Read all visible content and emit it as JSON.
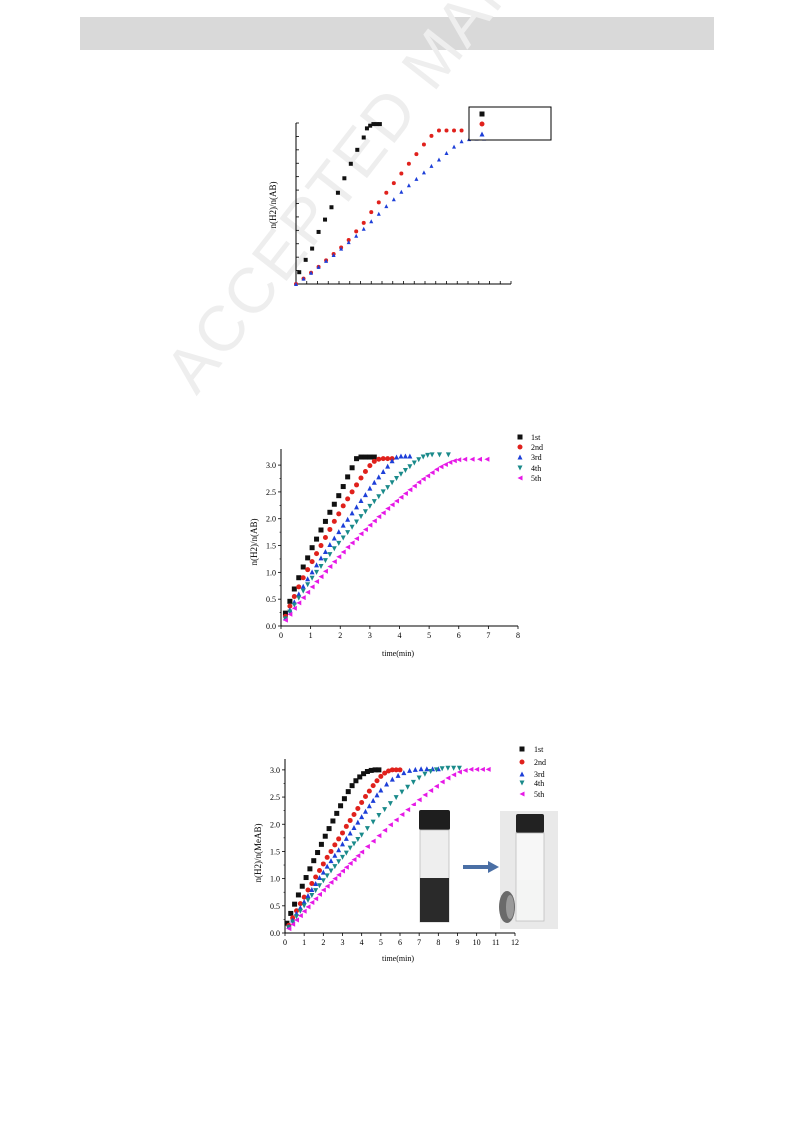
{
  "watermark": "ACCEPTED MANUSCRIPT",
  "colors": {
    "series1": "#111111",
    "series2": "#e0211c",
    "series3": "#1d3fd8",
    "series4": "#1a8a8a",
    "series5": "#e619e6",
    "arrow": "#4a6fa5"
  },
  "chart_data": [
    {
      "type": "scatter",
      "title": "",
      "xlabel": "",
      "ylabel": "n(H2)/n(AB)",
      "xlim": [
        0,
        10
      ],
      "ylim": [
        0,
        3
      ],
      "xticks": [],
      "yticks": [],
      "legend": {
        "position": "top-right",
        "entries": [
          "",
          "",
          ""
        ]
      },
      "series": [
        {
          "marker": "square",
          "color": "#111111",
          "x": [
            0.15,
            0.45,
            0.75,
            1.05,
            1.35,
            1.65,
            1.95,
            2.25,
            2.55,
            2.85,
            3.15,
            3.3,
            3.45,
            3.6,
            3.75,
            3.9
          ],
          "y": [
            0.22,
            0.45,
            0.66,
            0.97,
            1.2,
            1.43,
            1.7,
            1.97,
            2.24,
            2.5,
            2.73,
            2.9,
            2.95,
            2.98,
            2.98,
            2.98
          ]
        },
        {
          "marker": "circle",
          "color": "#e0211c",
          "x": [
            0,
            0.35,
            0.7,
            1.05,
            1.4,
            1.75,
            2.1,
            2.45,
            2.8,
            3.15,
            3.5,
            3.85,
            4.2,
            4.55,
            4.9,
            5.25,
            5.6,
            5.95,
            6.3,
            6.65,
            7.0,
            7.35,
            7.7
          ],
          "y": [
            0,
            0.1,
            0.21,
            0.32,
            0.44,
            0.56,
            0.68,
            0.82,
            0.98,
            1.14,
            1.34,
            1.52,
            1.7,
            1.88,
            2.06,
            2.24,
            2.42,
            2.6,
            2.76,
            2.86,
            2.86,
            2.86,
            2.86
          ]
        },
        {
          "marker": "triangle-up",
          "color": "#1d3fd8",
          "x": [
            0,
            0.35,
            0.7,
            1.05,
            1.4,
            1.75,
            2.1,
            2.45,
            2.8,
            3.15,
            3.5,
            3.85,
            4.2,
            4.55,
            4.9,
            5.25,
            5.6,
            5.95,
            6.3,
            6.65,
            7.0,
            7.35,
            7.7,
            8.05,
            8.4,
            8.75
          ],
          "y": [
            0,
            0.1,
            0.21,
            0.32,
            0.43,
            0.54,
            0.66,
            0.78,
            0.9,
            1.03,
            1.17,
            1.31,
            1.45,
            1.58,
            1.72,
            1.84,
            1.96,
            2.08,
            2.2,
            2.32,
            2.44,
            2.56,
            2.66,
            2.7,
            2.71,
            2.71
          ]
        }
      ]
    },
    {
      "type": "scatter",
      "title": "",
      "xlabel": "time(min)",
      "ylabel": "n(H2)/n(AB)",
      "xlim": [
        0,
        8
      ],
      "ylim": [
        0,
        3.3
      ],
      "xticks": [
        "0",
        "1",
        "2",
        "3",
        "4",
        "5",
        "6",
        "7",
        "8"
      ],
      "yticks": [
        "0.0",
        "0.5",
        "1.0",
        "1.5",
        "2.0",
        "2.5",
        "3.0"
      ],
      "legend": {
        "position": "top-right",
        "entries": [
          "1st",
          "2nd",
          "3rd",
          "4th",
          "5th"
        ]
      },
      "series": [
        {
          "name": "1st",
          "marker": "square",
          "color": "#111111",
          "x": [
            0.15,
            0.3,
            0.45,
            0.6,
            0.75,
            0.9,
            1.05,
            1.2,
            1.35,
            1.5,
            1.65,
            1.8,
            1.95,
            2.1,
            2.25,
            2.4,
            2.55,
            2.7,
            2.85,
            3.0,
            3.15
          ],
          "y": [
            0.24,
            0.46,
            0.69,
            0.9,
            1.1,
            1.27,
            1.46,
            1.62,
            1.79,
            1.95,
            2.12,
            2.27,
            2.43,
            2.6,
            2.78,
            2.95,
            3.12,
            3.15,
            3.15,
            3.15,
            3.15
          ]
        },
        {
          "name": "2nd",
          "marker": "circle",
          "color": "#e0211c",
          "x": [
            0.15,
            0.3,
            0.45,
            0.6,
            0.75,
            0.9,
            1.05,
            1.2,
            1.35,
            1.5,
            1.65,
            1.8,
            1.95,
            2.1,
            2.25,
            2.4,
            2.55,
            2.7,
            2.85,
            3.0,
            3.15,
            3.3,
            3.45,
            3.6,
            3.75
          ],
          "y": [
            0.18,
            0.37,
            0.55,
            0.73,
            0.9,
            1.05,
            1.2,
            1.35,
            1.5,
            1.65,
            1.8,
            1.95,
            2.09,
            2.24,
            2.37,
            2.5,
            2.63,
            2.76,
            2.88,
            2.99,
            3.07,
            3.11,
            3.12,
            3.12,
            3.12
          ]
        },
        {
          "name": "3rd",
          "marker": "triangle-up",
          "color": "#1d3fd8",
          "x": [
            0.15,
            0.3,
            0.45,
            0.6,
            0.75,
            0.9,
            1.05,
            1.2,
            1.35,
            1.5,
            1.65,
            1.8,
            1.95,
            2.1,
            2.25,
            2.4,
            2.55,
            2.7,
            2.85,
            3.0,
            3.15,
            3.3,
            3.45,
            3.6,
            3.75,
            3.9,
            4.05,
            4.2,
            4.35
          ],
          "y": [
            0.15,
            0.3,
            0.45,
            0.6,
            0.74,
            0.88,
            1.01,
            1.14,
            1.27,
            1.39,
            1.52,
            1.64,
            1.76,
            1.88,
            1.99,
            2.11,
            2.22,
            2.34,
            2.45,
            2.57,
            2.68,
            2.78,
            2.88,
            2.98,
            3.08,
            3.15,
            3.17,
            3.17,
            3.17
          ]
        },
        {
          "name": "4th",
          "marker": "triangle-down",
          "color": "#1a8a8a",
          "x": [
            0.15,
            0.3,
            0.45,
            0.6,
            0.75,
            0.9,
            1.05,
            1.2,
            1.35,
            1.5,
            1.65,
            1.8,
            1.95,
            2.1,
            2.25,
            2.4,
            2.55,
            2.7,
            2.85,
            3.0,
            3.15,
            3.3,
            3.45,
            3.6,
            3.75,
            3.9,
            4.05,
            4.2,
            4.35,
            4.5,
            4.65,
            4.8,
            4.95,
            5.1,
            5.35,
            5.65
          ],
          "y": [
            0.13,
            0.26,
            0.39,
            0.52,
            0.65,
            0.77,
            0.89,
            1.0,
            1.11,
            1.22,
            1.33,
            1.44,
            1.54,
            1.64,
            1.74,
            1.84,
            1.94,
            2.04,
            2.13,
            2.23,
            2.32,
            2.41,
            2.5,
            2.58,
            2.67,
            2.75,
            2.83,
            2.9,
            2.97,
            3.04,
            3.1,
            3.15,
            3.18,
            3.19,
            3.19,
            3.19
          ]
        },
        {
          "name": "5th",
          "marker": "triangle-left",
          "color": "#e619e6",
          "x": [
            0.15,
            0.3,
            0.45,
            0.6,
            0.75,
            0.9,
            1.05,
            1.2,
            1.35,
            1.5,
            1.65,
            1.8,
            1.95,
            2.1,
            2.25,
            2.4,
            2.55,
            2.7,
            2.85,
            3.0,
            3.15,
            3.3,
            3.45,
            3.6,
            3.75,
            3.9,
            4.05,
            4.2,
            4.35,
            4.5,
            4.65,
            4.8,
            4.95,
            5.1,
            5.25,
            5.4,
            5.55,
            5.7,
            5.85,
            6.0,
            6.2,
            6.45,
            6.7,
            6.95
          ],
          "y": [
            0.11,
            0.22,
            0.33,
            0.43,
            0.53,
            0.63,
            0.73,
            0.83,
            0.92,
            1.02,
            1.11,
            1.2,
            1.29,
            1.38,
            1.47,
            1.55,
            1.63,
            1.72,
            1.8,
            1.88,
            1.96,
            2.04,
            2.11,
            2.19,
            2.26,
            2.33,
            2.4,
            2.47,
            2.54,
            2.61,
            2.68,
            2.74,
            2.8,
            2.86,
            2.92,
            2.97,
            3.01,
            3.05,
            3.08,
            3.1,
            3.11,
            3.11,
            3.11,
            3.11
          ]
        }
      ]
    },
    {
      "type": "scatter",
      "title": "",
      "xlabel": "time(min)",
      "ylabel": "n(H2)/n(MeAB)",
      "xlim": [
        0,
        12
      ],
      "ylim": [
        0,
        3.2
      ],
      "xticks": [
        "0",
        "1",
        "2",
        "3",
        "4",
        "5",
        "6",
        "7",
        "8",
        "9",
        "10",
        "11",
        "12"
      ],
      "yticks": [
        "0.0",
        "0.5",
        "1.0",
        "1.5",
        "2.0",
        "2.5",
        "3.0"
      ],
      "legend": {
        "position": "top-right",
        "entries": [
          "1st",
          "2nd",
          "3rd",
          "4th",
          "5th"
        ]
      },
      "inset": "two vial photographs (dark suspension before, clear solution after) joined by an arrow",
      "series": [
        {
          "name": "1st",
          "marker": "square",
          "color": "#111111",
          "x": [
            0.1,
            0.3,
            0.5,
            0.7,
            0.9,
            1.1,
            1.3,
            1.5,
            1.7,
            1.9,
            2.1,
            2.3,
            2.5,
            2.7,
            2.9,
            3.1,
            3.3,
            3.5,
            3.7,
            3.9,
            4.1,
            4.3,
            4.5,
            4.7,
            4.9
          ],
          "y": [
            0.18,
            0.36,
            0.53,
            0.7,
            0.86,
            1.02,
            1.18,
            1.33,
            1.48,
            1.63,
            1.78,
            1.92,
            2.06,
            2.2,
            2.34,
            2.47,
            2.6,
            2.71,
            2.8,
            2.87,
            2.93,
            2.97,
            2.99,
            3.0,
            3.0
          ]
        },
        {
          "name": "2nd",
          "marker": "circle",
          "color": "#e0211c",
          "x": [
            0.2,
            0.4,
            0.6,
            0.8,
            1.0,
            1.2,
            1.4,
            1.6,
            1.8,
            2.0,
            2.2,
            2.4,
            2.6,
            2.8,
            3.0,
            3.2,
            3.4,
            3.6,
            3.8,
            4.0,
            4.2,
            4.4,
            4.6,
            4.8,
            5.0,
            5.2,
            5.4,
            5.6,
            5.8,
            6.0
          ],
          "y": [
            0.14,
            0.28,
            0.41,
            0.54,
            0.66,
            0.79,
            0.91,
            1.03,
            1.15,
            1.27,
            1.39,
            1.5,
            1.62,
            1.73,
            1.84,
            1.96,
            2.07,
            2.18,
            2.29,
            2.4,
            2.51,
            2.61,
            2.71,
            2.8,
            2.88,
            2.94,
            2.98,
            3.0,
            3.0,
            3.0
          ]
        },
        {
          "name": "3rd",
          "marker": "triangle-up",
          "color": "#1d3fd8",
          "x": [
            0.2,
            0.4,
            0.6,
            0.8,
            1.0,
            1.2,
            1.4,
            1.6,
            1.8,
            2.0,
            2.2,
            2.4,
            2.6,
            2.8,
            3.0,
            3.2,
            3.4,
            3.6,
            3.8,
            4.0,
            4.2,
            4.4,
            4.6,
            4.8,
            5.0,
            5.3,
            5.6,
            5.9,
            6.2,
            6.5,
            6.8,
            7.1,
            7.4,
            7.7,
            8.0
          ],
          "y": [
            0.12,
            0.24,
            0.36,
            0.47,
            0.58,
            0.69,
            0.8,
            0.91,
            1.02,
            1.12,
            1.23,
            1.33,
            1.43,
            1.53,
            1.64,
            1.74,
            1.84,
            1.94,
            2.04,
            2.14,
            2.24,
            2.34,
            2.44,
            2.54,
            2.63,
            2.74,
            2.83,
            2.9,
            2.95,
            2.99,
            3.01,
            3.02,
            3.02,
            3.02,
            3.02
          ]
        },
        {
          "name": "4th",
          "marker": "triangle-down",
          "color": "#1a8a8a",
          "x": [
            0.2,
            0.4,
            0.6,
            0.8,
            1.0,
            1.2,
            1.4,
            1.6,
            1.8,
            2.0,
            2.2,
            2.4,
            2.6,
            2.8,
            3.0,
            3.2,
            3.4,
            3.6,
            3.8,
            4.0,
            4.3,
            4.6,
            4.9,
            5.2,
            5.5,
            5.8,
            6.1,
            6.4,
            6.7,
            7.0,
            7.3,
            7.6,
            7.9,
            8.2,
            8.5,
            8.8,
            9.1
          ],
          "y": [
            0.1,
            0.2,
            0.3,
            0.4,
            0.5,
            0.6,
            0.69,
            0.78,
            0.87,
            0.96,
            1.05,
            1.14,
            1.22,
            1.31,
            1.39,
            1.47,
            1.56,
            1.64,
            1.72,
            1.8,
            1.92,
            2.04,
            2.16,
            2.27,
            2.38,
            2.49,
            2.59,
            2.68,
            2.77,
            2.85,
            2.92,
            2.97,
            3.0,
            3.02,
            3.03,
            3.03,
            3.03
          ]
        },
        {
          "name": "5th",
          "marker": "triangle-left",
          "color": "#e619e6",
          "x": [
            0.2,
            0.4,
            0.6,
            0.8,
            1.0,
            1.2,
            1.4,
            1.6,
            1.8,
            2.0,
            2.2,
            2.4,
            2.6,
            2.8,
            3.0,
            3.2,
            3.4,
            3.6,
            3.8,
            4.0,
            4.3,
            4.6,
            4.9,
            5.2,
            5.5,
            5.8,
            6.1,
            6.4,
            6.7,
            7.0,
            7.3,
            7.6,
            7.9,
            8.2,
            8.5,
            8.8,
            9.1,
            9.4,
            9.7,
            10.0,
            10.3,
            10.6
          ],
          "y": [
            0.08,
            0.16,
            0.24,
            0.32,
            0.4,
            0.48,
            0.56,
            0.63,
            0.71,
            0.79,
            0.86,
            0.93,
            1.0,
            1.07,
            1.14,
            1.21,
            1.28,
            1.35,
            1.42,
            1.49,
            1.59,
            1.69,
            1.79,
            1.89,
            1.99,
            2.08,
            2.18,
            2.27,
            2.36,
            2.45,
            2.54,
            2.62,
            2.7,
            2.78,
            2.85,
            2.91,
            2.96,
            2.99,
            3.01,
            3.01,
            3.01,
            3.01
          ]
        }
      ]
    }
  ]
}
